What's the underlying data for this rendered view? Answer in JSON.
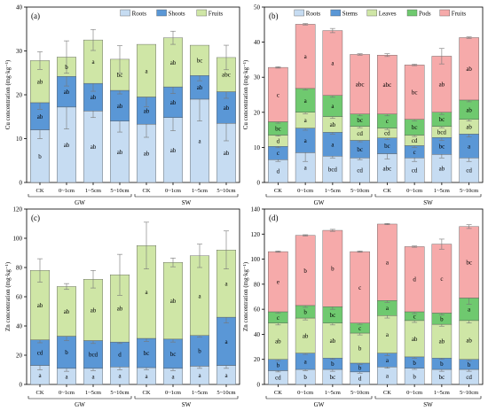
{
  "colors": {
    "Roots": "#c6dcf2",
    "Shoots": "#5a97d6",
    "Stems": "#5a97d6",
    "Fruits_ab": "#cfe6a6",
    "Leaves": "#cfe6a6",
    "Pods": "#6fc96f",
    "Fruits_cd": "#f6aaaa"
  },
  "chart_data": [
    {
      "id": "a",
      "type": "bar",
      "panel_label": "(a)",
      "ylabel": "Cu concentration (mg·kg⁻¹)",
      "ylim": [
        0,
        40
      ],
      "yticks": [
        0,
        10,
        20,
        30,
        40
      ],
      "categories": [
        "CK",
        "0~1cm",
        "1~5cm",
        "5~10cm",
        "CK",
        "0~1cm",
        "1~5cm",
        "5~10cm"
      ],
      "groups": [
        "GW",
        "SW"
      ],
      "legend_position": "top-right",
      "series": [
        {
          "name": "Roots",
          "color_key": "Roots",
          "values": [
            12.0,
            17.2,
            16.3,
            14.0,
            13.3,
            14.8,
            19.0,
            13.5
          ],
          "errors": [
            2.0,
            5.0,
            1.5,
            2.5,
            3.0,
            3.0,
            5.0,
            4.0
          ],
          "letters": [
            "b",
            "ab",
            "ab",
            "ab",
            "ab",
            "ab",
            "a",
            "ab"
          ]
        },
        {
          "name": "Shoots",
          "color_key": "Shoots",
          "values": [
            6.2,
            7.0,
            6.3,
            7.0,
            6.2,
            7.0,
            5.4,
            7.2
          ],
          "errors": [
            1.5,
            2.2,
            1.8,
            0.8,
            2.2,
            1.5,
            1.2,
            1.5
          ],
          "letters": [
            "ab",
            "ab",
            "ab",
            "ab",
            "ab",
            "ab",
            "ab",
            "ab"
          ]
        },
        {
          "name": "Fruits",
          "color_key": "Fruits_ab",
          "values": [
            9.6,
            4.4,
            9.9,
            7.1,
            12.0,
            11.2,
            6.9,
            7.8
          ],
          "errors": [
            2.0,
            3.7,
            2.4,
            3.1,
            0.0,
            1.5,
            0.0,
            2.8
          ],
          "letters": [
            "ab",
            "b",
            "a",
            "bc",
            "a",
            "ab",
            "bc",
            "abc"
          ]
        }
      ]
    },
    {
      "id": "b",
      "type": "bar",
      "panel_label": "(b)",
      "ylabel": "Cu concentration (mg·kg⁻¹)",
      "ylim": [
        0,
        50
      ],
      "yticks": [
        0,
        10,
        20,
        30,
        40,
        50
      ],
      "categories": [
        "CK",
        "0~1cm",
        "1~5cm",
        "5~10cm",
        "CK",
        "0~1cm",
        "1~5cm",
        "5~10cm"
      ],
      "groups": [
        "GW",
        "SW"
      ],
      "legend_position": "top",
      "series": [
        {
          "name": "Roots",
          "color_key": "Roots",
          "values": [
            6.5,
            8.5,
            7.5,
            7.0,
            8.2,
            7.0,
            8.0,
            7.0
          ],
          "errors": [
            0.5,
            2.5,
            0.5,
            0.5,
            1.5,
            1.0,
            1.0,
            1.0
          ],
          "letters": [
            "d",
            "a",
            "bcd",
            "cd",
            "abc",
            "cd",
            "ab",
            "cd"
          ]
        },
        {
          "name": "Stems",
          "color_key": "Stems",
          "values": [
            3.8,
            7.0,
            6.8,
            5.0,
            4.5,
            3.5,
            4.8,
            6.8
          ],
          "errors": [
            0.4,
            0.6,
            0.5,
            0.4,
            0.5,
            0.5,
            0.8,
            0.8
          ],
          "letters": [
            "c",
            "a",
            "a",
            "bc",
            "bc",
            "c",
            "bc",
            "a"
          ]
        },
        {
          "name": "Leaves",
          "color_key": "Leaves",
          "values": [
            3.2,
            4.5,
            4.5,
            4.0,
            2.8,
            3.0,
            3.2,
            4.2
          ],
          "errors": [
            0.3,
            0.4,
            0.5,
            0.4,
            0.4,
            0.4,
            0.4,
            0.5
          ],
          "letters": [
            "d",
            "a",
            "ab",
            "cd",
            "cd",
            "cd",
            "bcd",
            "ab"
          ]
        },
        {
          "name": "Pods",
          "color_key": "Pods",
          "values": [
            3.8,
            6.8,
            6.0,
            3.5,
            4.0,
            4.5,
            4.0,
            5.5
          ],
          "errors": [
            0.4,
            0.4,
            0.5,
            0.5,
            0.5,
            0.4,
            0.6,
            0.5
          ],
          "letters": [
            "bc",
            "a",
            "a",
            "bc",
            "c",
            "bc",
            "bc",
            "ab"
          ]
        },
        {
          "name": "Fruits",
          "color_key": "Fruits_cd",
          "values": [
            15.5,
            18.3,
            18.5,
            17.0,
            16.8,
            15.5,
            16.0,
            17.8
          ],
          "errors": [
            0.2,
            0.2,
            0.6,
            0.2,
            0.4,
            0.2,
            2.2,
            0.2
          ],
          "letters": [
            "c",
            "a",
            "a",
            "abc",
            "abc",
            "bc",
            "ab",
            "ab"
          ]
        }
      ]
    },
    {
      "id": "c",
      "type": "bar",
      "panel_label": "(c)",
      "ylabel": "Zn concentration (mg·kg⁻¹)",
      "ylim": [
        0,
        120
      ],
      "yticks": [
        0,
        20,
        40,
        60,
        80,
        100,
        120
      ],
      "categories": [
        "CK",
        "0~1cm",
        "1~5cm",
        "5~10cm",
        "CK",
        "0~1cm",
        "1~5cm",
        "5~10cm"
      ],
      "groups": [
        "GW",
        "SW"
      ],
      "legend_position": "none",
      "series": [
        {
          "name": "Roots",
          "color_key": "Roots",
          "values": [
            13.0,
            11.0,
            11.0,
            12.0,
            11.5,
            11.0,
            12.5,
            13.0
          ],
          "errors": [
            3.0,
            2.0,
            1.5,
            2.0,
            1.5,
            1.5,
            1.5,
            2.0
          ],
          "letters": [
            "a",
            "a",
            "a",
            "a",
            "a",
            "a",
            "a",
            "a"
          ]
        },
        {
          "name": "Shoots",
          "color_key": "Shoots",
          "values": [
            17.5,
            22.0,
            19.0,
            17.0,
            20.0,
            20.0,
            21.0,
            33.0
          ],
          "errors": [
            2.0,
            3.0,
            2.0,
            1.0,
            2.0,
            2.0,
            1.0,
            4.0
          ],
          "letters": [
            "cd",
            "b",
            "bcd",
            "d",
            "bc",
            "bc",
            "b",
            "a"
          ]
        },
        {
          "name": "Fruits",
          "color_key": "Fruits_ab",
          "values": [
            47.5,
            34.0,
            42.0,
            46.0,
            63.5,
            52.5,
            54.5,
            46.0
          ],
          "errors": [
            8.0,
            2.0,
            6.0,
            14.0,
            16.0,
            3.0,
            8.0,
            13.0
          ],
          "letters": [
            "ab",
            "ab",
            "ab",
            "ab",
            "a",
            "ab",
            "a",
            "a"
          ]
        }
      ]
    },
    {
      "id": "d",
      "type": "bar",
      "panel_label": "(d)",
      "ylabel": "Zn concentration (mg·kg⁻¹)",
      "ylim": [
        0,
        140
      ],
      "yticks": [
        0,
        20,
        40,
        60,
        80,
        100,
        120,
        140
      ],
      "categories": [
        "CK",
        "0~1cm",
        "1~5cm",
        "5~10cm",
        "CK",
        "0~1cm",
        "1~5cm",
        "5~10cm"
      ],
      "groups": [
        "GW",
        "SW"
      ],
      "legend_position": "none",
      "series": [
        {
          "name": "Roots",
          "color_key": "Roots",
          "values": [
            11.0,
            12.0,
            12.0,
            10.0,
            14.0,
            13.0,
            12.0,
            12.0
          ],
          "errors": [
            1.0,
            1.0,
            1.5,
            1.0,
            1.0,
            1.0,
            1.5,
            1.5
          ],
          "letters": [
            "cd",
            "b",
            "bc",
            "d",
            "a",
            "b",
            "bc",
            "cd"
          ]
        },
        {
          "name": "Stems",
          "color_key": "Stems",
          "values": [
            9.0,
            13.0,
            9.0,
            7.0,
            11.0,
            9.0,
            9.0,
            8.0
          ],
          "errors": [
            1.0,
            1.0,
            1.0,
            1.0,
            2.0,
            1.0,
            1.0,
            1.0
          ],
          "letters": [
            "b",
            "a",
            "b",
            "b",
            "a",
            "b",
            "b",
            "b"
          ]
        },
        {
          "name": "Leaves",
          "color_key": "Leaves",
          "values": [
            29.0,
            28.0,
            28.0,
            24.0,
            30.0,
            29.0,
            27.0,
            31.0
          ],
          "errors": [
            1.5,
            1.5,
            1.5,
            1.5,
            2.0,
            1.5,
            1.5,
            2.0
          ],
          "letters": [
            "ab",
            "ab",
            "ab",
            "b",
            "a",
            "ab",
            "ab",
            "ab"
          ]
        },
        {
          "name": "Pods",
          "color_key": "Pods",
          "values": [
            9.0,
            10.0,
            13.0,
            8.0,
            12.0,
            7.0,
            9.0,
            18.0
          ],
          "errors": [
            1.0,
            1.5,
            2.0,
            1.0,
            1.5,
            1.5,
            1.5,
            5.0
          ],
          "letters": [
            "c",
            "b",
            "bc",
            "c",
            "a",
            "c",
            "b",
            "a"
          ]
        },
        {
          "name": "Fruits",
          "color_key": "Fruits_cd",
          "values": [
            48.0,
            56.0,
            61.0,
            57.0,
            61.0,
            52.0,
            55.0,
            57.0
          ],
          "errors": [
            0.5,
            0.5,
            0.8,
            0.5,
            0.5,
            0.5,
            4.0,
            1.5
          ],
          "letters": [
            "e",
            "b",
            "b",
            "c",
            "a",
            "d",
            "c",
            "bc"
          ]
        }
      ]
    }
  ]
}
